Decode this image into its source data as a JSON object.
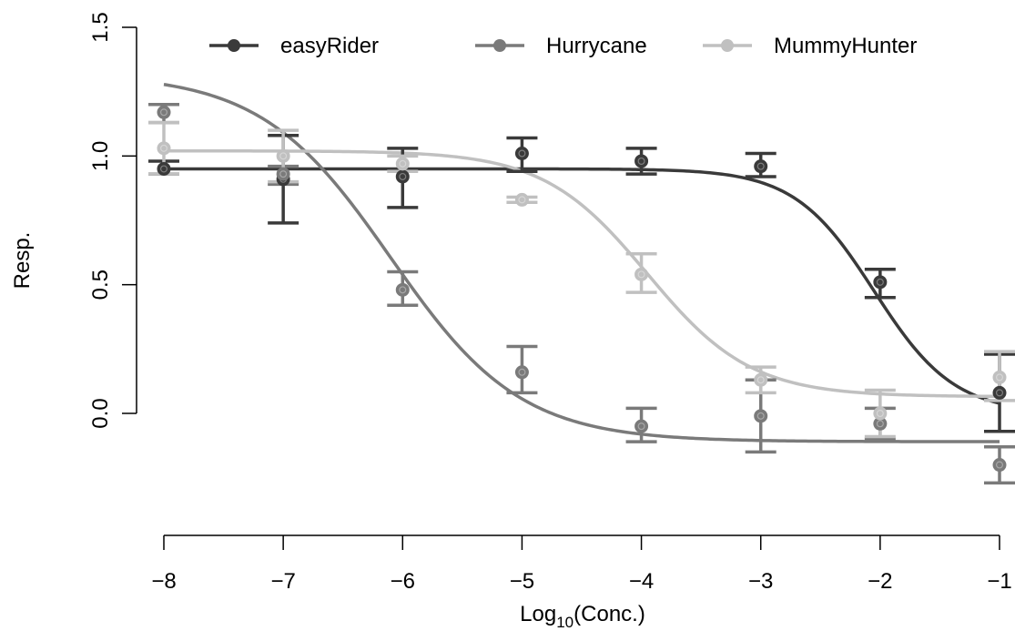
{
  "chart_data": {
    "type": "line",
    "title": "",
    "xlabel_base": "Log",
    "xlabel_sub": "10",
    "xlabel_rest": "(Conc.)",
    "ylabel": "Resp.",
    "xlim": [
      -8,
      -1
    ],
    "ylim": [
      -0.3,
      1.5
    ],
    "x_ticks": [
      -8,
      -7,
      -6,
      -5,
      -4,
      -3,
      -2,
      -1
    ],
    "x_tick_labels": [
      "−8",
      "−7",
      "−6",
      "−5",
      "−4",
      "−3",
      "−2",
      "−1"
    ],
    "y_ticks": [
      0.0,
      0.5,
      1.0,
      1.5
    ],
    "y_tick_labels": [
      "0.0",
      "0.5",
      "1.0",
      "1.5"
    ],
    "legend_position": "top",
    "series": [
      {
        "name": "easyRider",
        "color": "#3a3a3a",
        "x": [
          -8,
          -7,
          -6,
          -5,
          -4,
          -3,
          -2,
          -1
        ],
        "y": [
          0.95,
          0.91,
          0.92,
          1.01,
          0.98,
          0.96,
          0.51,
          0.08
        ],
        "err_low": [
          0.93,
          0.74,
          0.8,
          0.94,
          0.93,
          0.92,
          0.45,
          -0.07
        ],
        "err_high": [
          0.98,
          1.08,
          1.03,
          1.07,
          1.03,
          1.01,
          0.56,
          0.23
        ],
        "fit": {
          "bottom": 0.0,
          "top": 0.95,
          "logEC50": -2.05,
          "hill": 1.3
        }
      },
      {
        "name": "Hurrycane",
        "color": "#7a7a7a",
        "x": [
          -8,
          -7,
          -6,
          -5,
          -4,
          -3,
          -2,
          -1
        ],
        "y": [
          1.17,
          0.93,
          0.48,
          0.16,
          -0.05,
          -0.01,
          -0.04,
          -0.2
        ],
        "err_low": [
          1.13,
          0.89,
          0.42,
          0.08,
          -0.11,
          -0.15,
          -0.1,
          -0.27
        ],
        "err_high": [
          1.2,
          0.96,
          0.55,
          0.26,
          0.02,
          0.13,
          0.02,
          -0.13
        ],
        "fit": {
          "bottom": -0.11,
          "top": 1.32,
          "logEC50": -6.1,
          "hill": 0.8
        }
      },
      {
        "name": "MummyHunter",
        "color": "#c0c0c0",
        "x": [
          -8,
          -7,
          -6,
          -5,
          -4,
          -3,
          -2,
          -1
        ],
        "y": [
          1.03,
          1.0,
          0.97,
          0.83,
          0.54,
          0.13,
          0.0,
          0.14
        ],
        "err_low": [
          0.93,
          0.9,
          0.94,
          0.82,
          0.47,
          0.08,
          -0.09,
          0.05
        ],
        "err_high": [
          1.13,
          1.1,
          1.0,
          0.84,
          0.62,
          0.18,
          0.09,
          0.24
        ],
        "fit": {
          "bottom": 0.065,
          "top": 1.02,
          "logEC50": -3.95,
          "hill": 1.0
        }
      }
    ]
  }
}
